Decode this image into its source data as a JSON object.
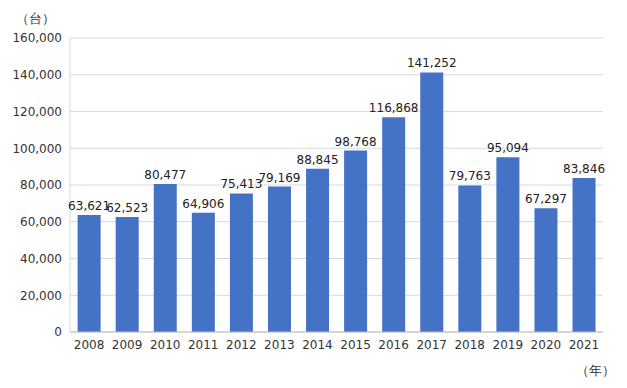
{
  "chart_data": {
    "type": "bar",
    "y_label": "（台）",
    "x_label": "（年）",
    "categories": [
      "2008",
      "2009",
      "2010",
      "2011",
      "2012",
      "2013",
      "2014",
      "2015",
      "2016",
      "2017",
      "2018",
      "2019",
      "2020",
      "2021"
    ],
    "values": [
      63621,
      62523,
      80477,
      64906,
      75413,
      79169,
      88845,
      98768,
      116868,
      141252,
      79763,
      95094,
      67297,
      83846
    ],
    "value_labels": [
      "63,621",
      "62,523",
      "80,477",
      "64,906",
      "75,413",
      "79,169",
      "88,845",
      "98,768",
      "116,868",
      "141,252",
      "79,763",
      "95,094",
      "67,297",
      "83,846"
    ],
    "color": "#4472c4",
    "ylim": [
      0,
      160000
    ],
    "yticks": [
      {
        "value": 0,
        "label": "0"
      },
      {
        "value": 20000,
        "label": "20,000"
      },
      {
        "value": 40000,
        "label": "40,000"
      },
      {
        "value": 60000,
        "label": "60,000"
      },
      {
        "value": 80000,
        "label": "80,000"
      },
      {
        "value": 100000,
        "label": "100,000"
      },
      {
        "value": 120000,
        "label": "120,000"
      },
      {
        "value": 140000,
        "label": "140,000"
      },
      {
        "value": 160000,
        "label": "160,000"
      }
    ],
    "grid": true,
    "data_labels": true
  }
}
